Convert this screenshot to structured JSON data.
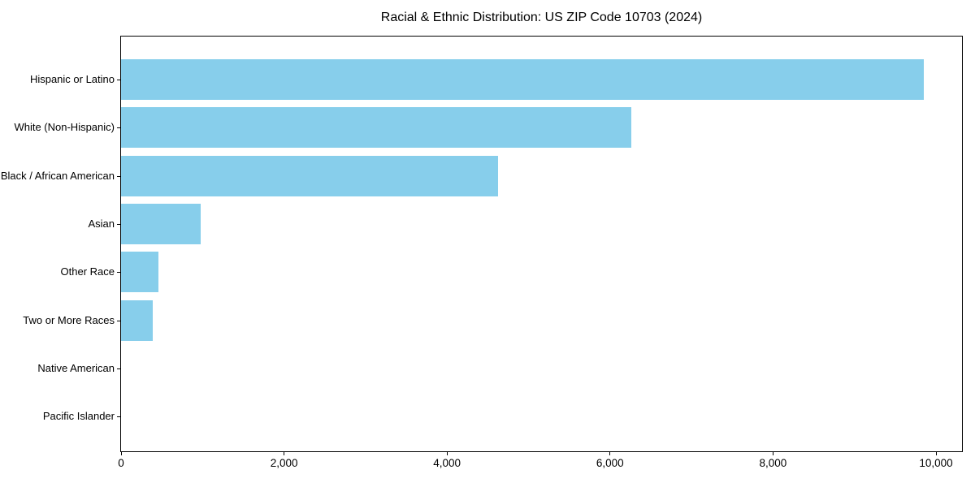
{
  "colors": {
    "bar": "#87CEEB",
    "axis": "#000000",
    "text": "#000000",
    "background": "#FFFFFF"
  },
  "chart_data": {
    "type": "bar",
    "orientation": "horizontal",
    "title": "Racial & Ethnic Distribution: US ZIP Code 10703 (2024)",
    "categories": [
      "Hispanic or Latino",
      "White (Non-Hispanic)",
      "Black / African American",
      "Asian",
      "Other Race",
      "Two or More Races",
      "Native American",
      "Pacific Islander"
    ],
    "values": [
      9850,
      6260,
      4630,
      980,
      455,
      390,
      0,
      0
    ],
    "xlabel": "",
    "ylabel": "",
    "xlim": [
      0,
      10330
    ],
    "x_ticks": [
      0,
      2000,
      4000,
      6000,
      8000,
      10000
    ],
    "x_tick_labels": [
      "0",
      "2,000",
      "4,000",
      "6,000",
      "8,000",
      "10,000"
    ],
    "grid": false,
    "legend": "none",
    "bar_color": "#87CEEB",
    "sort_order": "descending"
  }
}
